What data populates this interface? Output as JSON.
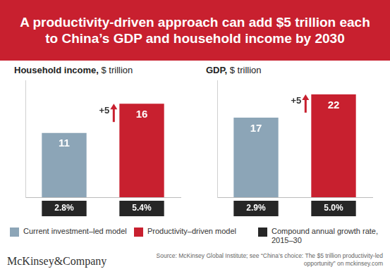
{
  "title": "A productivity-driven approach can add $5 trillion each to China’s GDP and household income by 2030",
  "chart_data": [
    {
      "type": "bar",
      "title": "Household income,",
      "units": "$ trillion",
      "categories": [
        null,
        null
      ],
      "values": [
        11,
        16
      ],
      "colors": [
        "#8ca5b7",
        "#c8202f"
      ],
      "ylim": [
        0,
        20
      ],
      "grid": false,
      "tick_labels": false,
      "data_labels": true,
      "annotation": "+5",
      "growth_rates": {
        "values": [
          2.8,
          5.4
        ],
        "value_labels": [
          "2.8%",
          "5.4%"
        ],
        "color": "#262626"
      }
    },
    {
      "type": "bar",
      "title": "GDP,",
      "units": "$ trillion",
      "categories": [
        null,
        null
      ],
      "values": [
        17,
        22
      ],
      "colors": [
        "#8ca5b7",
        "#c8202f"
      ],
      "ylim": [
        0,
        25
      ],
      "grid": false,
      "tick_labels": false,
      "data_labels": true,
      "annotation": "+5",
      "growth_rates": {
        "values": [
          2.9,
          5.0
        ],
        "value_labels": [
          "2.9%",
          "5.0%"
        ],
        "color": "#262626"
      }
    }
  ],
  "legend_items": [
    {
      "label": "Current investment–led model",
      "color": "#8ca5b7"
    },
    {
      "label": "Productivity–driven model",
      "color": "#c8202f"
    },
    {
      "label": "Compound annual growth rate, 2015–30",
      "color": "#262626"
    }
  ],
  "brand": "McKinsey&Company",
  "source": "Source: McKinsey Global Institute; see “China’s choice: The $5 trillion productivity-led opportunity” on mckinsey.com"
}
